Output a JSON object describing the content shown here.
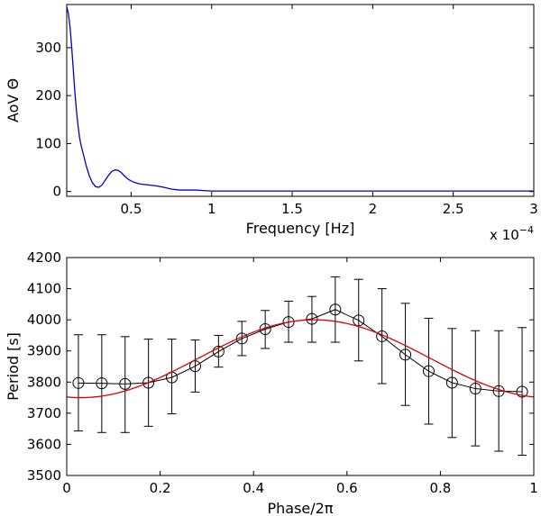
{
  "chart_data": [
    {
      "type": "line",
      "xlabel": "Frequency [Hz]",
      "ylabel": "AoV Θ",
      "x_multiplier_label": "x 10",
      "x_multiplier_exp": "−4",
      "xlim": [
        0.1,
        3.0
      ],
      "ylim": [
        -10,
        390
      ],
      "xticks": [
        0.5,
        1,
        1.5,
        2,
        2.5,
        3
      ],
      "xtick_labels": [
        "0.5",
        "1",
        "1.5",
        "2",
        "2.5",
        "3"
      ],
      "yticks": [
        0,
        100,
        200,
        300
      ],
      "ytick_labels": [
        "0",
        "100",
        "200",
        "300"
      ],
      "series": [
        {
          "color": "#0000cc",
          "x": [
            0.1,
            0.11,
            0.12,
            0.13,
            0.14,
            0.15,
            0.16,
            0.17,
            0.18,
            0.19,
            0.2,
            0.22,
            0.24,
            0.26,
            0.28,
            0.3,
            0.32,
            0.34,
            0.36,
            0.38,
            0.4,
            0.42,
            0.44,
            0.46,
            0.48,
            0.5,
            0.52,
            0.55,
            0.6,
            0.65,
            0.7,
            0.75,
            0.8,
            0.85,
            0.9,
            0.95,
            1.0,
            1.1,
            1.5,
            2.0,
            2.5,
            3.0
          ],
          "y": [
            385,
            372,
            345,
            305,
            258,
            210,
            170,
            138,
            112,
            95,
            82,
            55,
            33,
            18,
            10,
            9,
            14,
            24,
            34,
            42,
            45,
            44,
            39,
            32,
            26,
            22,
            19,
            16,
            14,
            12,
            9,
            5,
            3,
            3,
            3,
            2,
            1,
            1,
            1,
            1,
            1,
            1
          ]
        }
      ]
    },
    {
      "type": "line",
      "xlabel": "Phase/2π",
      "ylabel": "Period [s]",
      "xlim": [
        0,
        1
      ],
      "ylim": [
        3500,
        4200
      ],
      "xticks": [
        0,
        0.2,
        0.4,
        0.6,
        0.8,
        1
      ],
      "xtick_labels": [
        "0",
        "0.2",
        "0.4",
        "0.6",
        "0.8",
        "1"
      ],
      "yticks": [
        3500,
        3600,
        3700,
        3800,
        3900,
        4000,
        4100,
        4200
      ],
      "ytick_labels": [
        "3500",
        "3600",
        "3700",
        "3800",
        "3900",
        "4000",
        "4100",
        "4200"
      ],
      "series": [
        {
          "color": "#000000",
          "marker": "circle-with-errorbars",
          "x": [
            0.025,
            0.075,
            0.125,
            0.175,
            0.225,
            0.275,
            0.325,
            0.375,
            0.425,
            0.475,
            0.525,
            0.575,
            0.625,
            0.675,
            0.725,
            0.775,
            0.825,
            0.875,
            0.925,
            0.975
          ],
          "y": [
            3797,
            3796,
            3794,
            3798,
            3815,
            3851,
            3898,
            3940,
            3970,
            3993,
            4003,
            4033,
            3998,
            3947,
            3888,
            3835,
            3798,
            3779,
            3771,
            3769
          ],
          "err_low": [
            3643,
            3638,
            3638,
            3658,
            3698,
            3768,
            3848,
            3885,
            3908,
            3928,
            3928,
            3928,
            3868,
            3795,
            3725,
            3665,
            3622,
            3595,
            3578,
            3565
          ],
          "err_high": [
            3952,
            3952,
            3946,
            3938,
            3938,
            3935,
            3950,
            3995,
            4030,
            4060,
            4075,
            4138,
            4130,
            4100,
            4053,
            4005,
            3972,
            3965,
            3965,
            3975
          ]
        },
        {
          "color": "#dd0000",
          "fit": "sinusoid",
          "mean": 3875,
          "amplitude": 125,
          "peak_phase": 0.53
        }
      ]
    }
  ]
}
